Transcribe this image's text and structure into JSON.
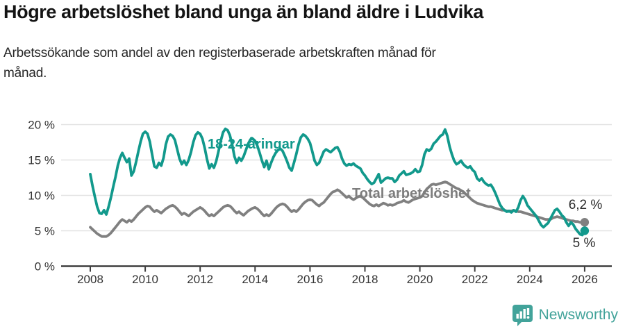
{
  "header": {
    "title": "Högre arbetslöshet bland unga än bland äldre i Ludvika",
    "subtitle_lines": [
      "Arbetssökande som andel av den registerbaserade arbetskraften månad för",
      "månad."
    ]
  },
  "footer": {
    "brand": "Newsworthy"
  },
  "colors": {
    "youth_series": "#12998c",
    "total_series": "#808080",
    "gridline": "#e2e2e2",
    "axis": "#3f3f3f",
    "tick_text": "#333333",
    "annotation_text": "#2b2b2b",
    "brand_teal": "#42a39a"
  },
  "chart_data": {
    "type": "line",
    "title": "Högre arbetslöshet bland unga än bland äldre i Ludvika",
    "subtitle": "Arbetssökande som andel av den registerbaserade arbetskraften månad för månad.",
    "x_unit": "months, January 2008 – January 2026",
    "x_start": 2008.0,
    "x_step": 0.08333,
    "xlim": [
      2006.9,
      2027.0
    ],
    "ylim": [
      0,
      20.6
    ],
    "grid": "horizontal",
    "legend_position": "inline-labels",
    "x_ticks": [
      2008,
      2010,
      2012,
      2014,
      2016,
      2018,
      2020,
      2022,
      2024,
      2026
    ],
    "x_tick_labels": [
      "2008",
      "2010",
      "2012",
      "2014",
      "2016",
      "2018",
      "2020",
      "2022",
      "2024",
      "2026"
    ],
    "y_ticks": [
      0,
      5,
      10,
      15,
      20
    ],
    "y_tick_labels": [
      "0 %",
      "5 %",
      "10 %",
      "15 %",
      "20 %"
    ],
    "series": [
      {
        "name": "18-24-åringar",
        "color": "#12998c",
        "end_value": 5.0,
        "end_label": "5 %",
        "values": [
          13.0,
          11.3,
          9.8,
          8.4,
          7.5,
          7.4,
          7.9,
          7.3,
          8.4,
          9.7,
          11.2,
          12.6,
          14.2,
          15.3,
          16.0,
          15.3,
          14.7,
          15.2,
          12.8,
          13.4,
          14.7,
          16.2,
          17.6,
          18.7,
          19.0,
          18.7,
          17.6,
          15.8,
          14.1,
          13.9,
          14.6,
          14.2,
          15.3,
          17.2,
          18.3,
          18.6,
          18.4,
          17.8,
          16.5,
          15.2,
          14.4,
          14.9,
          14.3,
          15.0,
          16.1,
          17.5,
          18.5,
          18.9,
          18.7,
          18.0,
          16.7,
          15.1,
          13.8,
          14.4,
          13.9,
          14.8,
          16.2,
          17.7,
          18.9,
          19.4,
          19.2,
          18.5,
          17.2,
          15.5,
          14.6,
          15.3,
          14.9,
          15.5,
          16.4,
          17.3,
          17.9,
          18.0,
          17.7,
          17.0,
          16.0,
          14.9,
          14.0,
          14.9,
          13.7,
          14.6,
          15.4,
          16.0,
          16.4,
          16.6,
          16.3,
          15.6,
          14.8,
          13.9,
          13.5,
          14.6,
          15.8,
          17.2,
          18.2,
          18.6,
          18.4,
          18.0,
          17.4,
          16.2,
          14.9,
          14.3,
          14.6,
          15.4,
          16.2,
          16.5,
          16.3,
          16.1,
          16.4,
          16.7,
          16.8,
          16.2,
          15.2,
          14.5,
          14.2,
          14.4,
          14.3,
          14.5,
          14.2,
          14.0,
          13.8,
          13.2,
          12.8,
          12.3,
          11.9,
          11.6,
          11.8,
          12.4,
          13.0,
          11.8,
          12.1,
          12.4,
          12.5,
          12.4,
          12.4,
          11.9,
          12.2,
          12.8,
          13.1,
          13.4,
          12.9,
          13.0,
          13.1,
          13.3,
          13.7,
          13.3,
          13.4,
          14.3,
          15.8,
          16.5,
          16.3,
          16.6,
          17.3,
          17.6,
          18.0,
          18.4,
          18.6,
          19.3,
          18.4,
          16.9,
          15.8,
          14.9,
          14.4,
          14.6,
          14.9,
          14.4,
          14.1,
          13.9,
          14.1,
          13.6,
          13.3,
          12.4,
          12.1,
          12.4,
          11.9,
          11.6,
          11.4,
          11.5,
          11.0,
          10.3,
          9.5,
          8.7,
          8.2,
          7.9,
          7.7,
          7.8,
          7.6,
          7.9,
          7.7,
          8.3,
          9.3,
          9.9,
          9.4,
          8.6,
          8.2,
          7.8,
          7.4,
          7.0,
          6.4,
          5.8,
          5.5,
          5.8,
          6.1,
          6.7,
          7.3,
          7.9,
          8.1,
          7.7,
          7.2,
          6.9,
          6.2,
          5.7,
          6.2,
          5.9,
          5.3,
          4.9,
          4.5,
          4.4,
          5.0
        ]
      },
      {
        "name": "Total arbetslöshet",
        "color": "#808080",
        "end_value": 6.2,
        "end_label": "6,2 %",
        "values": [
          5.5,
          5.2,
          4.9,
          4.6,
          4.4,
          4.2,
          4.2,
          4.2,
          4.4,
          4.7,
          5.1,
          5.5,
          5.9,
          6.3,
          6.6,
          6.4,
          6.2,
          6.5,
          6.3,
          6.6,
          7.0,
          7.4,
          7.7,
          8.0,
          8.3,
          8.5,
          8.4,
          8.0,
          7.7,
          7.9,
          7.7,
          7.5,
          7.8,
          8.1,
          8.3,
          8.5,
          8.6,
          8.4,
          8.1,
          7.7,
          7.3,
          7.5,
          7.3,
          7.1,
          7.4,
          7.7,
          7.9,
          8.1,
          8.3,
          8.1,
          7.8,
          7.4,
          7.1,
          7.3,
          7.1,
          7.4,
          7.7,
          8.0,
          8.3,
          8.5,
          8.6,
          8.5,
          8.2,
          7.8,
          7.5,
          7.7,
          7.4,
          7.2,
          7.5,
          7.8,
          8.0,
          8.2,
          8.3,
          8.1,
          7.8,
          7.4,
          7.1,
          7.3,
          7.1,
          7.4,
          7.8,
          8.2,
          8.5,
          8.7,
          8.8,
          8.7,
          8.4,
          8.0,
          7.7,
          7.9,
          7.7,
          8.0,
          8.4,
          8.8,
          9.1,
          9.3,
          9.4,
          9.3,
          9.0,
          8.7,
          8.5,
          8.8,
          9.0,
          9.4,
          9.8,
          10.2,
          10.5,
          10.6,
          10.8,
          10.6,
          10.3,
          10.0,
          9.7,
          9.9,
          9.6,
          9.4,
          9.6,
          9.8,
          9.9,
          9.7,
          9.4,
          9.1,
          8.8,
          8.6,
          8.5,
          8.7,
          8.5,
          8.7,
          8.9,
          8.8,
          8.6,
          8.7,
          8.6,
          8.7,
          8.9,
          9.0,
          9.1,
          9.3,
          9.1,
          9.0,
          9.2,
          9.4,
          9.5,
          9.6,
          9.7,
          9.9,
          10.4,
          10.9,
          11.2,
          11.5,
          11.6,
          11.5,
          11.6,
          11.7,
          11.8,
          11.9,
          11.8,
          11.6,
          11.4,
          11.2,
          11.0,
          10.9,
          10.7,
          10.5,
          10.2,
          9.9,
          9.6,
          9.3,
          9.1,
          8.9,
          8.8,
          8.7,
          8.6,
          8.5,
          8.4,
          8.4,
          8.3,
          8.2,
          8.1,
          8.0,
          7.9,
          7.9,
          7.8,
          7.8,
          7.8,
          7.9,
          7.8,
          7.7,
          7.7,
          7.6,
          7.5,
          7.4,
          7.3,
          7.2,
          7.1,
          7.0,
          6.9,
          6.8,
          6.7,
          6.6,
          6.6,
          6.6,
          6.8,
          6.9,
          7.0,
          6.9,
          6.8,
          6.7,
          6.6,
          6.5,
          6.4,
          6.4,
          6.3,
          6.3,
          6.2,
          6.2,
          6.2
        ]
      }
    ]
  }
}
